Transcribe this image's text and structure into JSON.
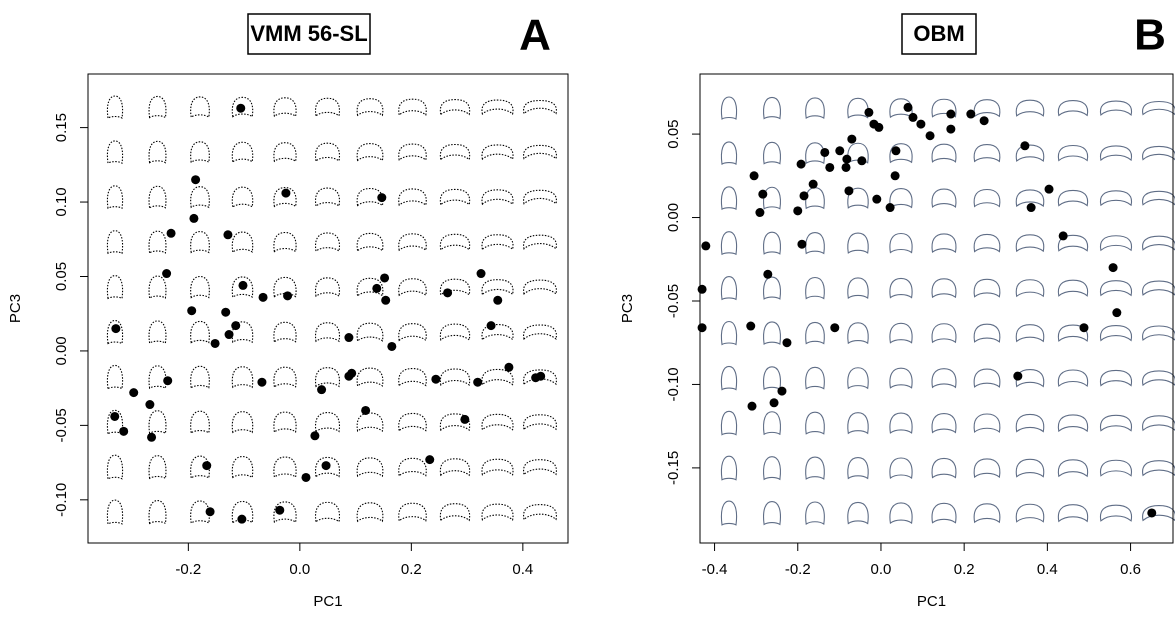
{
  "chart_data": [
    {
      "type": "scatter",
      "title": "VMM 56-SL",
      "panel_label": "A",
      "x_label": "PC1",
      "y_label": "PC3",
      "color": "#000000",
      "xlim": [
        -0.38,
        0.481
      ],
      "ylim": [
        -0.129,
        0.186
      ],
      "xticks": [
        -0.2,
        {
          "value": 0,
          "label": "0.0"
        },
        0.2,
        0.4
      ],
      "yticks": [
        {
          "value": -0.1,
          "label": "-0.10"
        },
        -0.05,
        {
          "value": 0,
          "label": "0.00"
        },
        0.05,
        {
          "value": 0.1,
          "label": "0.10"
        },
        0.15
      ],
      "x": [
        -0.106,
        -0.187,
        -0.025,
        0.147,
        -0.19,
        -0.231,
        -0.129,
        -0.239,
        0.325,
        0.152,
        -0.102,
        0.138,
        0.265,
        -0.066,
        -0.022,
        0.154,
        0.355,
        -0.194,
        -0.133,
        -0.115,
        -0.33,
        0.343,
        -0.127,
        0.088,
        -0.152,
        0.165,
        0.375,
        0.093,
        0.088,
        0.244,
        0.432,
        0.423,
        -0.237,
        -0.068,
        0.319,
        0.039,
        -0.298,
        -0.269,
        0.118,
        -0.332,
        0.296,
        -0.316,
        -0.266,
        0.027,
        0.233,
        -0.167,
        0.047,
        0.011,
        -0.161,
        -0.036,
        -0.104
      ],
      "values": [
        0.163,
        0.115,
        0.106,
        0.103,
        0.089,
        0.079,
        0.078,
        0.052,
        0.052,
        0.049,
        0.044,
        0.042,
        0.039,
        0.036,
        0.037,
        0.034,
        0.034,
        0.027,
        0.026,
        0.017,
        0.015,
        0.017,
        0.011,
        0.009,
        0.005,
        0.003,
        -0.011,
        -0.015,
        -0.017,
        -0.019,
        -0.017,
        -0.018,
        -0.02,
        -0.021,
        -0.021,
        -0.026,
        -0.028,
        -0.036,
        -0.04,
        -0.044,
        -0.046,
        -0.054,
        -0.058,
        -0.057,
        -0.073,
        -0.077,
        -0.077,
        -0.085,
        -0.108,
        -0.107,
        -0.113
      ]
    },
    {
      "type": "scatter",
      "title": "OBM",
      "panel_label": "B",
      "x_label": "PC1",
      "y_label": "PC3",
      "color": "#000000",
      "xlim": [
        -0.435,
        0.702
      ],
      "ylim": [
        -0.195,
        0.086
      ],
      "xticks": [
        -0.4,
        -0.2,
        {
          "value": 0,
          "label": "0.0"
        },
        0.2,
        0.4,
        0.6
      ],
      "yticks": [
        -0.15,
        {
          "value": -0.1,
          "label": "-0.10"
        },
        -0.05,
        {
          "value": 0,
          "label": "0.00"
        },
        0.05
      ],
      "x": [
        -0.029,
        0.065,
        0.077,
        0.096,
        0.216,
        0.168,
        -0.017,
        -0.005,
        0.118,
        0.168,
        0.248,
        0.346,
        -0.07,
        -0.135,
        -0.099,
        -0.082,
        -0.046,
        0.036,
        -0.084,
        0.034,
        -0.123,
        -0.163,
        -0.192,
        -0.305,
        -0.077,
        -0.185,
        -0.284,
        -0.01,
        0.022,
        -0.2,
        -0.291,
        0.404,
        0.361,
        0.438,
        -0.19,
        -0.421,
        0.558,
        -0.43,
        -0.272,
        -0.313,
        -0.43,
        -0.111,
        0.567,
        0.488,
        -0.226,
        0.329,
        -0.238,
        -0.257,
        -0.31,
        0.651
      ],
      "values": [
        0.063,
        0.066,
        0.06,
        0.056,
        0.062,
        0.062,
        0.056,
        0.054,
        0.049,
        0.053,
        0.058,
        0.043,
        0.047,
        0.039,
        0.04,
        0.035,
        0.034,
        0.04,
        0.03,
        0.025,
        0.03,
        0.02,
        0.032,
        0.025,
        0.016,
        0.013,
        0.014,
        0.011,
        0.006,
        0.004,
        0.003,
        0.017,
        0.006,
        -0.011,
        -0.016,
        -0.017,
        -0.03,
        -0.043,
        -0.034,
        -0.065,
        -0.066,
        -0.066,
        -0.057,
        -0.066,
        -0.075,
        -0.095,
        -0.104,
        -0.111,
        -0.113,
        -0.177
      ]
    }
  ]
}
